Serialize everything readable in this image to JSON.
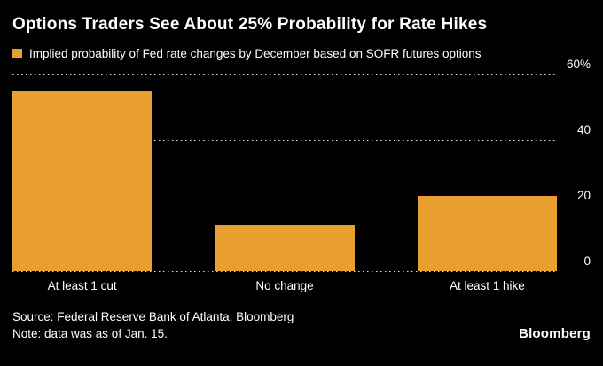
{
  "header": {
    "title": "Options Traders See About 25% Probability for Rate Hikes"
  },
  "legend": {
    "label": "Implied probability of Fed rate changes by December based on SOFR futures options"
  },
  "chart_data": {
    "type": "bar",
    "categories": [
      "At least 1 cut",
      "No change",
      "At least 1 hike"
    ],
    "values": [
      55,
      14,
      23
    ],
    "unit": "%",
    "title": "Options Traders See About 25% Probability for Rate Hikes",
    "xlabel": "",
    "ylabel": "",
    "ylim": [
      0,
      60
    ],
    "yticks": [
      {
        "value": 60,
        "label": "60%"
      },
      {
        "value": 40,
        "label": "40"
      },
      {
        "value": 20,
        "label": "20"
      },
      {
        "value": 0,
        "label": "0"
      }
    ],
    "grid": "horizontal-dotted",
    "legend_entries": [
      "Implied probability of Fed rate changes by December based on SOFR futures options"
    ],
    "legend_position": "top-left",
    "bar_color": "#E99F2F",
    "axis_side": "right"
  },
  "footer": {
    "source_line": "Source: Federal Reserve Bank of Atlanta, Bloomberg",
    "note_line": "Note: data was as of Jan. 15.",
    "brand": "Bloomberg"
  },
  "colors": {
    "background": "#000000",
    "bar": "#E99F2F",
    "text": "#FFFFFF",
    "grid": "#DCDCDC"
  }
}
